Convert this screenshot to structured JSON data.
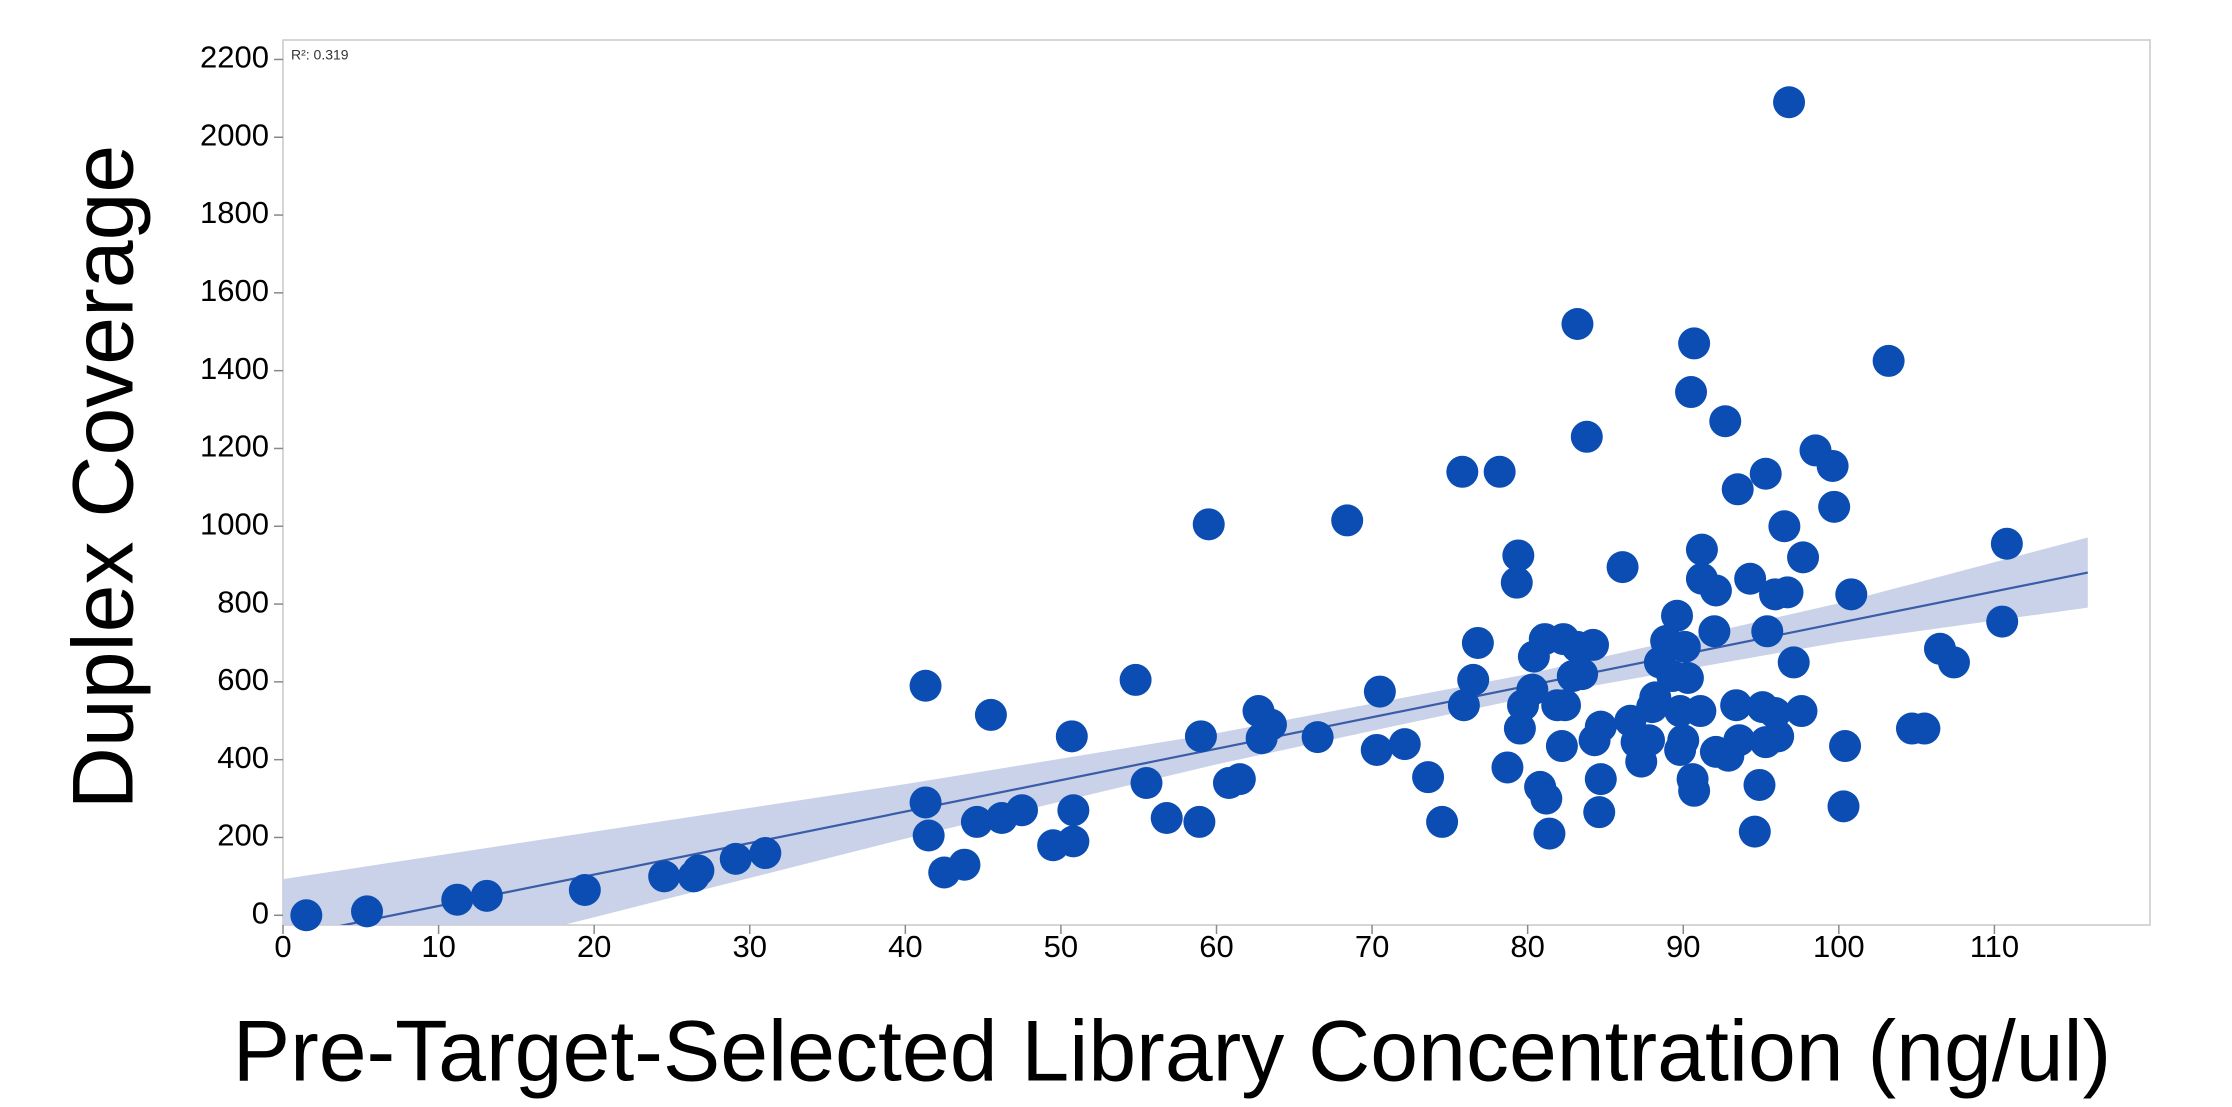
{
  "chart_data": {
    "type": "scatter",
    "x_label": "Pre-Target-Selected Library Concentration (ng/ul)",
    "y_label": "Duplex Coverage",
    "annotation": "R²: 0.319",
    "color": "#0b4db3",
    "x": [
      1.5,
      5.4,
      11.2,
      13.1,
      19.4,
      24.5,
      26.4,
      26.7,
      29.1,
      31,
      41.3,
      41.3,
      41.5,
      42.5,
      43.8,
      44.6,
      45.5,
      46.2,
      47.5,
      49.5,
      50.8,
      50.7,
      50.8,
      54.8,
      55.5,
      56.8,
      58.9,
      59,
      59.5,
      60.8,
      61.5,
      62.7,
      62.9,
      63.5,
      66.5,
      68.4,
      70.5,
      70.3,
      72.1,
      73.6,
      74.5,
      75.8,
      75.9,
      76.5,
      76.8,
      78.2,
      78.7,
      79.4,
      79.3,
      79.5,
      79.7,
      80.3,
      80.4,
      80.8,
      81.2,
      81.4,
      81.1,
      81.9,
      82.3,
      82.2,
      82.4,
      82.9,
      83.2,
      83.2,
      83.5,
      83.8,
      84.2,
      84.3,
      84.6,
      84.7,
      84.7,
      86.1,
      86.6,
      87,
      87.3,
      87.8,
      88,
      88.2,
      88.5,
      88.9,
      89.3,
      89.6,
      89.8,
      90,
      89.8,
      90.1,
      90.3,
      90.5,
      90.7,
      90.6,
      90.7,
      91.2,
      91.2,
      91.1,
      92,
      92.1,
      92.1,
      92.7,
      92.9,
      93.5,
      93.4,
      93.6,
      94.3,
      94.6,
      94.9,
      95.1,
      95.3,
      95.4,
      95.3,
      95.9,
      95.9,
      96.1,
      96.5,
      96.7,
      96.8,
      97.1,
      97.6,
      97.7,
      98.5,
      99.6,
      99.7,
      100.4,
      100.3,
      100.8,
      103.2,
      104.7,
      105.5,
      106.5,
      107.4,
      110.5,
      110.8
    ],
    "values": [
      0,
      10,
      40,
      50,
      65,
      100,
      100,
      115,
      145,
      160,
      590,
      290,
      205,
      110,
      130,
      240,
      515,
      250,
      270,
      180,
      190,
      460,
      270,
      605,
      340,
      250,
      240,
      460,
      1005,
      340,
      350,
      525,
      455,
      490,
      458,
      1015,
      575,
      425,
      440,
      355,
      240,
      1140,
      540,
      605,
      700,
      1140,
      380,
      925,
      855,
      480,
      540,
      580,
      665,
      330,
      300,
      210,
      710,
      540,
      710,
      435,
      540,
      615,
      1520,
      690,
      620,
      1230,
      695,
      450,
      265,
      350,
      485,
      895,
      500,
      445,
      395,
      450,
      535,
      560,
      650,
      705,
      615,
      770,
      525,
      450,
      425,
      690,
      610,
      1345,
      1470,
      350,
      320,
      940,
      865,
      525,
      730,
      835,
      420,
      1270,
      410,
      1095,
      540,
      450,
      865,
      215,
      335,
      535,
      1135,
      730,
      445,
      825,
      520,
      460,
      1000,
      830,
      2090,
      650,
      525,
      920,
      1195,
      1155,
      1050,
      435,
      280,
      825,
      1425,
      480,
      480,
      685,
      650,
      755,
      955
    ],
    "fit": {
      "color": "#3b5ca6",
      "x": [
        0,
        116
      ],
      "y": [
        -57,
        881
      ]
    },
    "band": {
      "color": "#c6d0e7",
      "x": [
        0,
        20,
        40,
        60,
        80,
        100,
        116
      ],
      "lower": [
        -207,
        -5,
        197,
        388,
        560,
        702,
        791
      ],
      "upper": [
        93,
        215,
        337,
        468,
        620,
        802,
        971
      ]
    },
    "xlim": [
      0,
      120
    ],
    "ylim": [
      -25,
      2250
    ],
    "xticks": [
      0,
      10,
      20,
      30,
      40,
      50,
      60,
      70,
      80,
      90,
      100,
      110
    ],
    "yticks": [
      0,
      200,
      400,
      600,
      800,
      1000,
      1200,
      1400,
      1600,
      1800,
      2000,
      2200
    ]
  }
}
